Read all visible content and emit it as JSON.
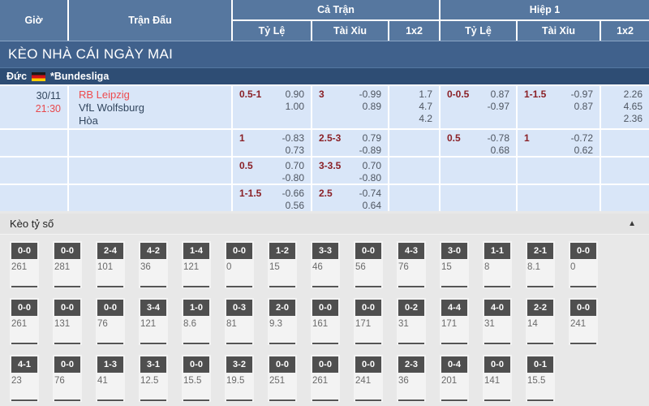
{
  "header": {
    "time": "Giờ",
    "match": "Trận Đấu",
    "full_time": "Cả Trận",
    "first_half": "Hiệp 1",
    "handicap": "Tỷ Lệ",
    "over_under": "Tài Xỉu",
    "x12": "1x2"
  },
  "banner": {
    "title": "KÈO NHÀ CÁI NGÀY MAI"
  },
  "league": {
    "country": "Đức",
    "flag": "germany-flag",
    "name": "*Bundesliga"
  },
  "colors": {
    "header_blue": "#56779f",
    "banner_blue": "#40618c",
    "league_navy": "#2e4d74",
    "row_light_blue": "#d9e6f8",
    "handicap_maroon": "#8a2026",
    "accent_red": "#ee4b4e",
    "score_box_dark": "#4f4f4f",
    "section_gray": "#e8e8e8"
  },
  "odds_table": {
    "rows": [
      {
        "date": "30/11",
        "time": "21:30",
        "teams": [
          "RB Leipzig",
          "VfL Wolfsburg",
          "Hòa"
        ],
        "ft_hdp": {
          "line": "0.5-1",
          "top": "0.90",
          "bottom": "1.00"
        },
        "ft_ou": {
          "line": "3",
          "top": "-0.99",
          "bottom": "0.89"
        },
        "ft_1x2": [
          "1.7",
          "4.7",
          "4.2"
        ],
        "h1_hdp": {
          "line": "0-0.5",
          "top": "0.87",
          "bottom": "-0.97"
        },
        "h1_ou": {
          "line": "1-1.5",
          "top": "-0.97",
          "bottom": "0.87"
        },
        "h1_1x2": [
          "2.26",
          "4.65",
          "2.36"
        ]
      },
      {
        "ft_hdp": {
          "line": "1",
          "top": "-0.83",
          "bottom": "0.73"
        },
        "ft_ou": {
          "line": "2.5-3",
          "top": "0.79",
          "bottom": "-0.89"
        },
        "h1_hdp": {
          "line": "0.5",
          "top": "-0.78",
          "bottom": "0.68"
        },
        "h1_ou": {
          "line": "1",
          "top": "-0.72",
          "bottom": "0.62"
        }
      },
      {
        "ft_hdp": {
          "line": "0.5",
          "top": "0.70",
          "bottom": "-0.80"
        },
        "ft_ou": {
          "line": "3-3.5",
          "top": "0.70",
          "bottom": "-0.80"
        }
      },
      {
        "ft_hdp": {
          "line": "1-1.5",
          "top": "-0.66",
          "bottom": "0.56"
        },
        "ft_ou": {
          "line": "2.5",
          "top": "-0.74",
          "bottom": "0.64"
        }
      }
    ]
  },
  "score_section": {
    "title": "Kèo tỷ số",
    "collapse_icon": "▲",
    "rows": [
      [
        {
          "score": "0-0",
          "odds": "261"
        },
        {
          "score": "0-0",
          "odds": "281"
        },
        {
          "score": "2-4",
          "odds": "101"
        },
        {
          "score": "4-2",
          "odds": "36"
        },
        {
          "score": "1-4",
          "odds": "121"
        },
        {
          "score": "0-0",
          "odds": "0"
        },
        {
          "score": "1-2",
          "odds": "15"
        },
        {
          "score": "3-3",
          "odds": "46"
        },
        {
          "score": "0-0",
          "odds": "56"
        },
        {
          "score": "4-3",
          "odds": "76"
        },
        {
          "score": "3-0",
          "odds": "15"
        },
        {
          "score": "1-1",
          "odds": "8"
        },
        {
          "score": "2-1",
          "odds": "8.1"
        },
        {
          "score": "0-0",
          "odds": "0"
        }
      ],
      [
        {
          "score": "0-0",
          "odds": "261"
        },
        {
          "score": "0-0",
          "odds": "131"
        },
        {
          "score": "0-0",
          "odds": "76"
        },
        {
          "score": "3-4",
          "odds": "121"
        },
        {
          "score": "1-0",
          "odds": "8.6"
        },
        {
          "score": "0-3",
          "odds": "81"
        },
        {
          "score": "2-0",
          "odds": "9.3"
        },
        {
          "score": "0-0",
          "odds": "161"
        },
        {
          "score": "0-0",
          "odds": "171"
        },
        {
          "score": "0-2",
          "odds": "31"
        },
        {
          "score": "4-4",
          "odds": "171"
        },
        {
          "score": "4-0",
          "odds": "31"
        },
        {
          "score": "2-2",
          "odds": "14"
        },
        {
          "score": "0-0",
          "odds": "241"
        }
      ],
      [
        {
          "score": "4-1",
          "odds": "23"
        },
        {
          "score": "0-0",
          "odds": "76"
        },
        {
          "score": "1-3",
          "odds": "41"
        },
        {
          "score": "3-1",
          "odds": "12.5"
        },
        {
          "score": "0-0",
          "odds": "15.5"
        },
        {
          "score": "3-2",
          "odds": "19.5"
        },
        {
          "score": "0-0",
          "odds": "251"
        },
        {
          "score": "0-0",
          "odds": "261"
        },
        {
          "score": "0-0",
          "odds": "241"
        },
        {
          "score": "2-3",
          "odds": "36"
        },
        {
          "score": "0-4",
          "odds": "201"
        },
        {
          "score": "0-0",
          "odds": "141"
        },
        {
          "score": "0-1",
          "odds": "15.5"
        }
      ]
    ]
  }
}
